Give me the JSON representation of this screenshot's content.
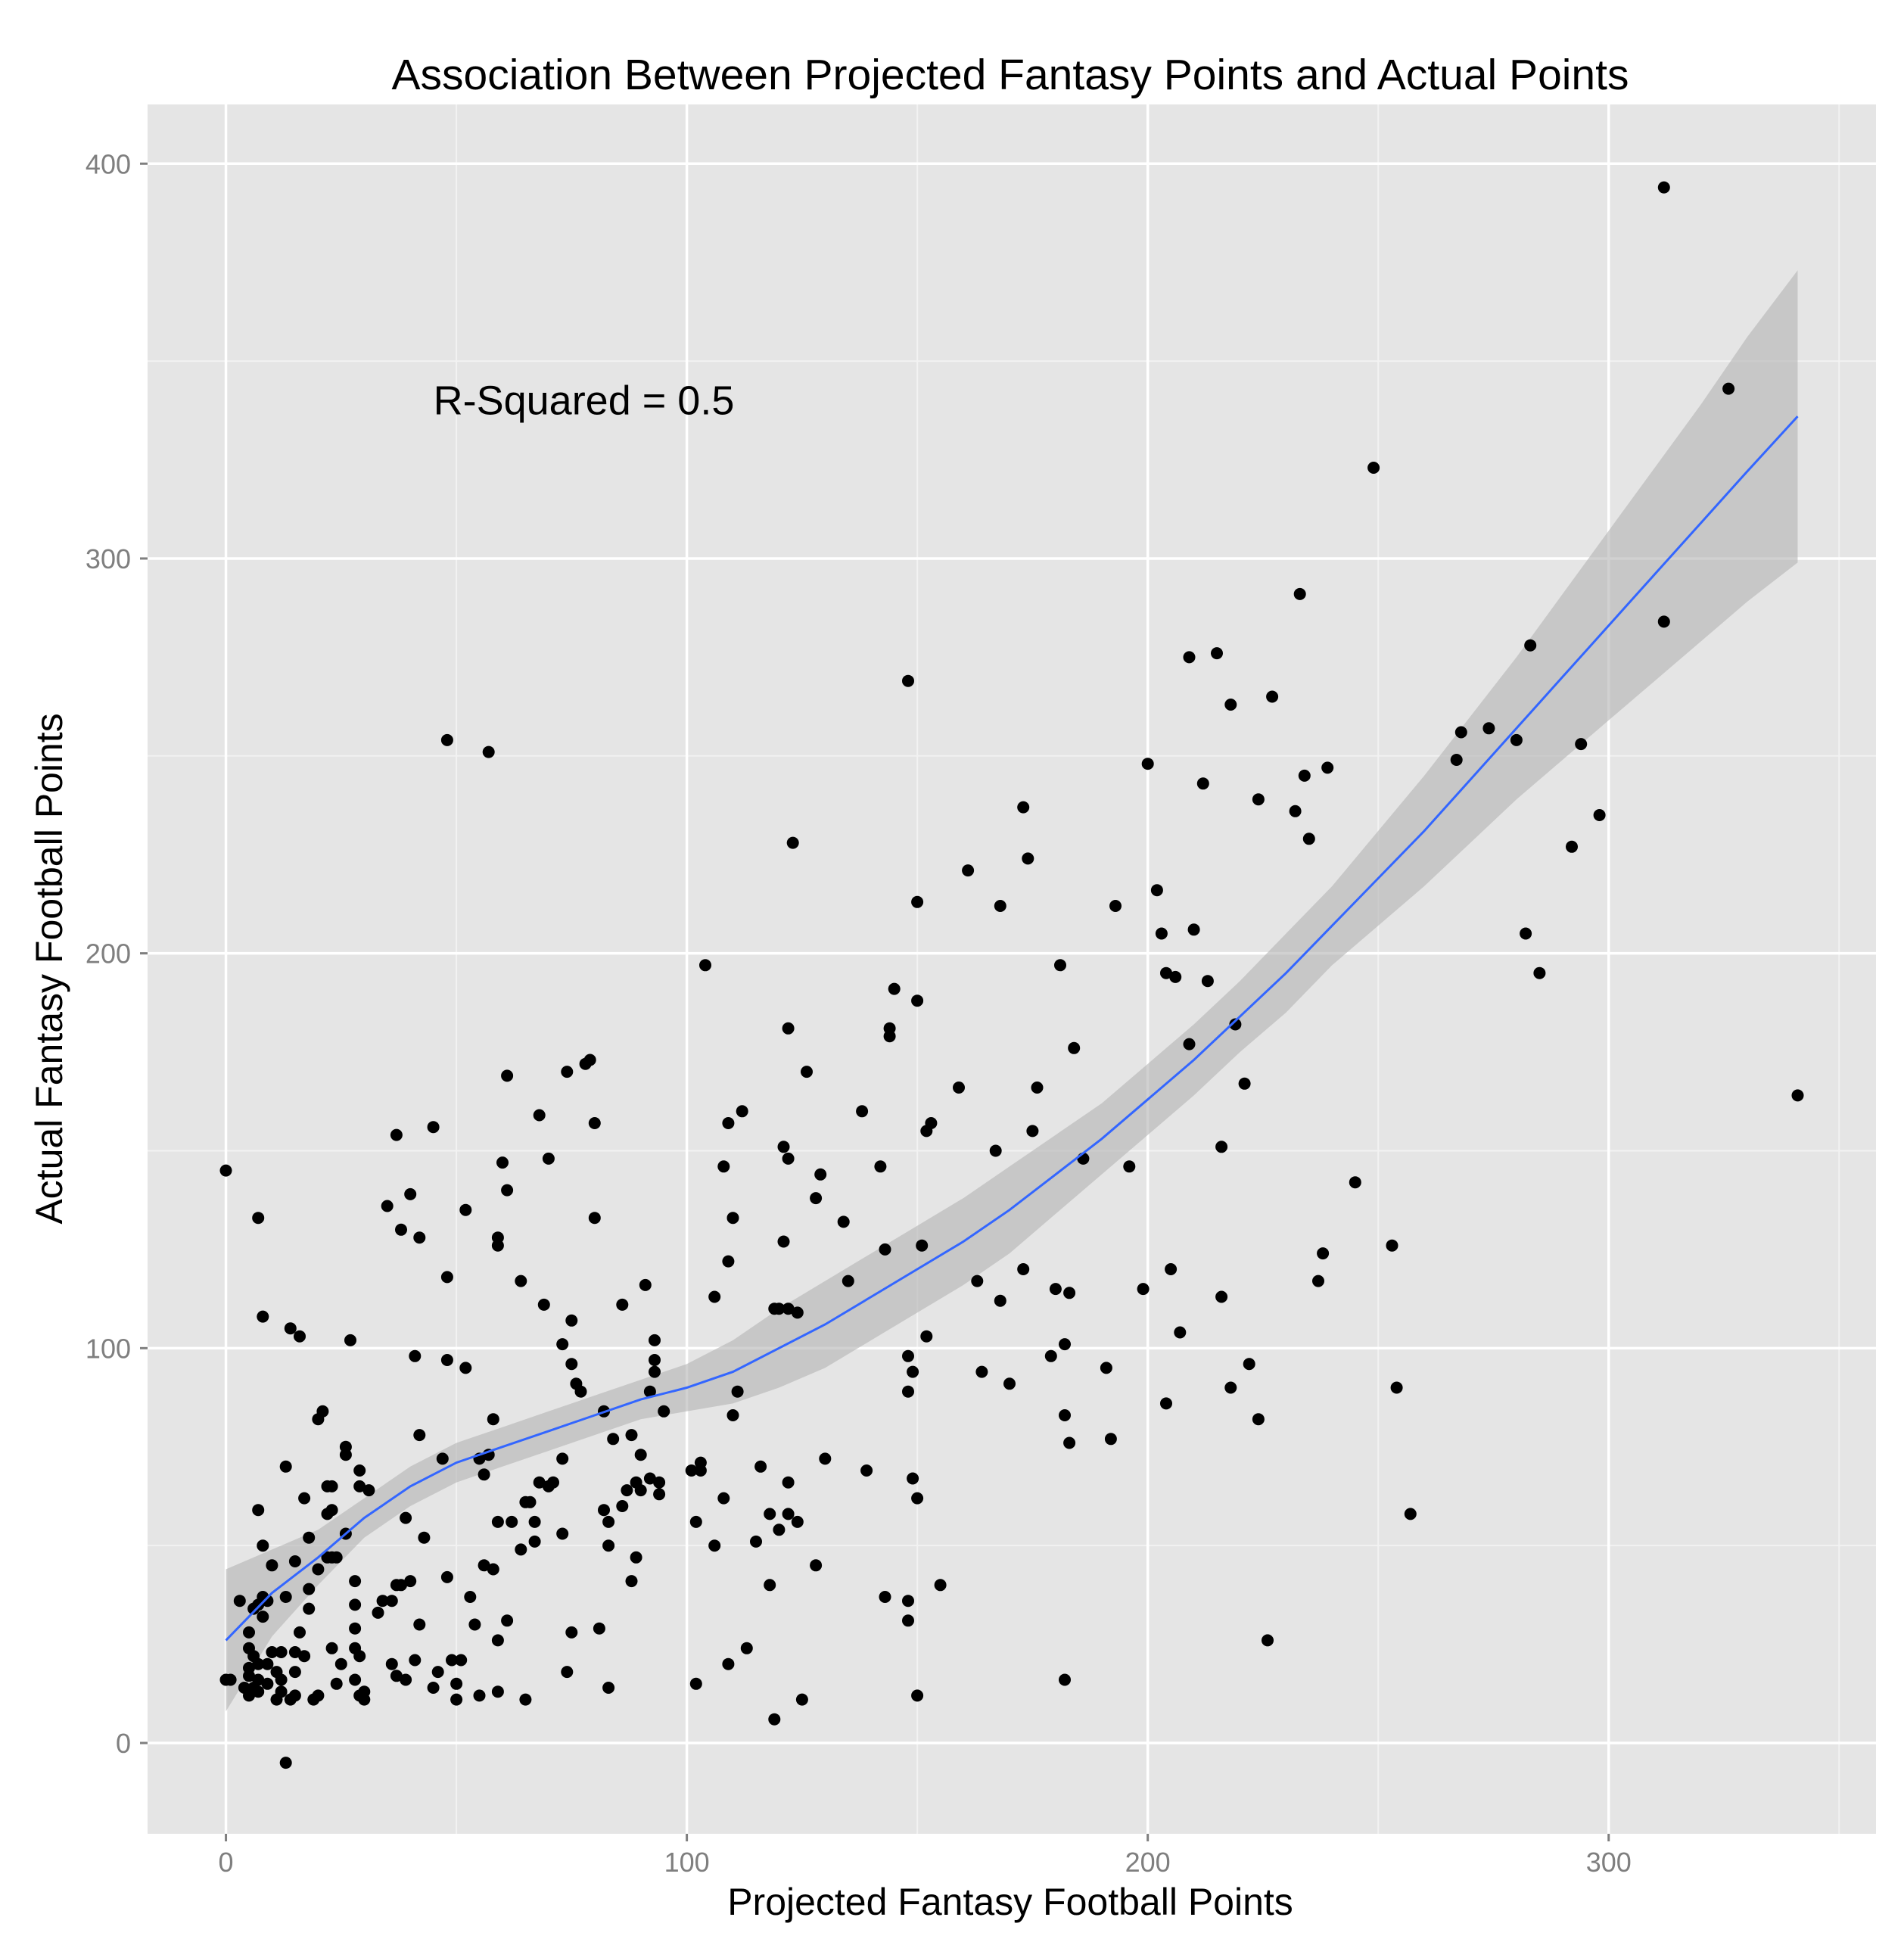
{
  "chart_data": {
    "type": "scatter",
    "title": "Association Between Projected Fantasy Points and Actual Points",
    "xlabel": "Projected Fantasy Football Points",
    "ylabel": "Actual Fantasy Football Points",
    "xlim": [
      -17,
      358
    ],
    "ylim": [
      -23,
      415
    ],
    "x_ticks": [
      0,
      100,
      200,
      300
    ],
    "y_ticks": [
      0,
      100,
      200,
      300,
      400
    ],
    "x_tick_labels": [
      "0",
      "100",
      "200",
      "300"
    ],
    "y_tick_labels": [
      "0",
      "100",
      "200",
      "300",
      "400"
    ],
    "grid": true,
    "legend": "none",
    "annotation": {
      "text": "R-Squared = 0.5",
      "x": 45,
      "y": 340
    },
    "colors": {
      "panel": "#e5e5e5",
      "grid_major": "#ffffff",
      "grid_minor": "#f2f2f2",
      "points": "#000000",
      "smooth_line": "#3366ff",
      "ribbon": "#b3b3b3"
    },
    "points": [
      [
        0,
        16
      ],
      [
        0,
        145
      ],
      [
        1,
        16
      ],
      [
        3,
        36
      ],
      [
        4,
        14
      ],
      [
        5,
        12
      ],
      [
        5,
        17
      ],
      [
        5,
        19
      ],
      [
        5,
        24
      ],
      [
        5,
        28
      ],
      [
        6,
        14
      ],
      [
        6,
        22
      ],
      [
        6,
        34
      ],
      [
        7,
        13
      ],
      [
        7,
        16
      ],
      [
        7,
        20
      ],
      [
        7,
        35
      ],
      [
        7,
        59
      ],
      [
        7,
        133
      ],
      [
        8,
        32
      ],
      [
        8,
        37
      ],
      [
        8,
        50
      ],
      [
        8,
        108
      ],
      [
        9,
        15
      ],
      [
        9,
        20
      ],
      [
        9,
        36
      ],
      [
        10,
        23
      ],
      [
        10,
        45
      ],
      [
        11,
        18
      ],
      [
        11,
        11
      ],
      [
        12,
        13
      ],
      [
        12,
        16
      ],
      [
        12,
        23
      ],
      [
        13,
        -5
      ],
      [
        13,
        37
      ],
      [
        13,
        70
      ],
      [
        14,
        11
      ],
      [
        14,
        105
      ],
      [
        15,
        12
      ],
      [
        15,
        18
      ],
      [
        15,
        23
      ],
      [
        15,
        46
      ],
      [
        16,
        28
      ],
      [
        16,
        103
      ],
      [
        17,
        22
      ],
      [
        17,
        62
      ],
      [
        18,
        34
      ],
      [
        18,
        39
      ],
      [
        18,
        52
      ],
      [
        19,
        11
      ],
      [
        20,
        12
      ],
      [
        20,
        44
      ],
      [
        20,
        82
      ],
      [
        21,
        84
      ],
      [
        22,
        47
      ],
      [
        22,
        58
      ],
      [
        22,
        65
      ],
      [
        23,
        24
      ],
      [
        23,
        47
      ],
      [
        23,
        59
      ],
      [
        23,
        65
      ],
      [
        24,
        15
      ],
      [
        24,
        47
      ],
      [
        25,
        20
      ],
      [
        26,
        53
      ],
      [
        26,
        73
      ],
      [
        26,
        75
      ],
      [
        27,
        102
      ],
      [
        28,
        24
      ],
      [
        28,
        29
      ],
      [
        28,
        41
      ],
      [
        28,
        16
      ],
      [
        28,
        35
      ],
      [
        29,
        12
      ],
      [
        29,
        22
      ],
      [
        29,
        65
      ],
      [
        29,
        69
      ],
      [
        30,
        11
      ],
      [
        30,
        13
      ],
      [
        31,
        64
      ],
      [
        33,
        33
      ],
      [
        34,
        36
      ],
      [
        35,
        136
      ],
      [
        36,
        20
      ],
      [
        36,
        36
      ],
      [
        37,
        17
      ],
      [
        37,
        40
      ],
      [
        37,
        154
      ],
      [
        38,
        40
      ],
      [
        38,
        130
      ],
      [
        39,
        16
      ],
      [
        39,
        57
      ],
      [
        40,
        41
      ],
      [
        40,
        139
      ],
      [
        41,
        21
      ],
      [
        41,
        98
      ],
      [
        42,
        30
      ],
      [
        42,
        78
      ],
      [
        42,
        128
      ],
      [
        43,
        52
      ],
      [
        45,
        14
      ],
      [
        45,
        156
      ],
      [
        46,
        18
      ],
      [
        47,
        72
      ],
      [
        48,
        42
      ],
      [
        48,
        97
      ],
      [
        48,
        118
      ],
      [
        48,
        254
      ],
      [
        49,
        21
      ],
      [
        50,
        11
      ],
      [
        50,
        15
      ],
      [
        51,
        21
      ],
      [
        52,
        95
      ],
      [
        52,
        135
      ],
      [
        53,
        37
      ],
      [
        54,
        30
      ],
      [
        55,
        12
      ],
      [
        55,
        72
      ],
      [
        56,
        45
      ],
      [
        56,
        68
      ],
      [
        57,
        73
      ],
      [
        57,
        251
      ],
      [
        58,
        44
      ],
      [
        58,
        82
      ],
      [
        59,
        13
      ],
      [
        59,
        26
      ],
      [
        59,
        56
      ],
      [
        59,
        126
      ],
      [
        59,
        128
      ],
      [
        60,
        147
      ],
      [
        61,
        31
      ],
      [
        61,
        140
      ],
      [
        61,
        169
      ],
      [
        62,
        56
      ],
      [
        64,
        117
      ],
      [
        64,
        49
      ],
      [
        65,
        11
      ],
      [
        65,
        61
      ],
      [
        66,
        61
      ],
      [
        67,
        51
      ],
      [
        67,
        56
      ],
      [
        68,
        66
      ],
      [
        68,
        159
      ],
      [
        69,
        111
      ],
      [
        70,
        65
      ],
      [
        70,
        148
      ],
      [
        71,
        66
      ],
      [
        73,
        53
      ],
      [
        73,
        72
      ],
      [
        73,
        101
      ],
      [
        74,
        18
      ],
      [
        74,
        170
      ],
      [
        75,
        28
      ],
      [
        75,
        96
      ],
      [
        75,
        107
      ],
      [
        76,
        91
      ],
      [
        77,
        89
      ],
      [
        78,
        172
      ],
      [
        79,
        173
      ],
      [
        80,
        157
      ],
      [
        80,
        133
      ],
      [
        81,
        29
      ],
      [
        82,
        59
      ],
      [
        82,
        84
      ],
      [
        83,
        14
      ],
      [
        83,
        50
      ],
      [
        83,
        56
      ],
      [
        84,
        77
      ],
      [
        86,
        111
      ],
      [
        86,
        60
      ],
      [
        87,
        64
      ],
      [
        88,
        41
      ],
      [
        88,
        78
      ],
      [
        89,
        47
      ],
      [
        89,
        66
      ],
      [
        90,
        64
      ],
      [
        90,
        73
      ],
      [
        91,
        116
      ],
      [
        92,
        67
      ],
      [
        92,
        89
      ],
      [
        93,
        94
      ],
      [
        93,
        97
      ],
      [
        93,
        102
      ],
      [
        94,
        63
      ],
      [
        94,
        66
      ],
      [
        95,
        84
      ],
      [
        101,
        69
      ],
      [
        102,
        56
      ],
      [
        102,
        15
      ],
      [
        103,
        69
      ],
      [
        103,
        71
      ],
      [
        104,
        197
      ],
      [
        106,
        50
      ],
      [
        106,
        113
      ],
      [
        108,
        62
      ],
      [
        108,
        146
      ],
      [
        109,
        20
      ],
      [
        109,
        122
      ],
      [
        109,
        157
      ],
      [
        110,
        83
      ],
      [
        110,
        133
      ],
      [
        111,
        89
      ],
      [
        112,
        160
      ],
      [
        113,
        24
      ],
      [
        115,
        51
      ],
      [
        116,
        70
      ],
      [
        118,
        58
      ],
      [
        118,
        40
      ],
      [
        119,
        6
      ],
      [
        119,
        110
      ],
      [
        120,
        54
      ],
      [
        120,
        110
      ],
      [
        121,
        127
      ],
      [
        121,
        151
      ],
      [
        122,
        58
      ],
      [
        122,
        66
      ],
      [
        122,
        110
      ],
      [
        122,
        148
      ],
      [
        122,
        181
      ],
      [
        123,
        228
      ],
      [
        124,
        56
      ],
      [
        124,
        109
      ],
      [
        125,
        11
      ],
      [
        126,
        170
      ],
      [
        128,
        45
      ],
      [
        128,
        138
      ],
      [
        129,
        144
      ],
      [
        130,
        72
      ],
      [
        134,
        132
      ],
      [
        135,
        117
      ],
      [
        138,
        160
      ],
      [
        139,
        69
      ],
      [
        142,
        146
      ],
      [
        143,
        125
      ],
      [
        143,
        37
      ],
      [
        144,
        181
      ],
      [
        144,
        179
      ],
      [
        145,
        191
      ],
      [
        148,
        98
      ],
      [
        148,
        36
      ],
      [
        148,
        31
      ],
      [
        148,
        89
      ],
      [
        148,
        269
      ],
      [
        149,
        67
      ],
      [
        149,
        94
      ],
      [
        150,
        12
      ],
      [
        150,
        62
      ],
      [
        150,
        213
      ],
      [
        150,
        188
      ],
      [
        151,
        126
      ],
      [
        152,
        103
      ],
      [
        152,
        155
      ],
      [
        153,
        157
      ],
      [
        155,
        40
      ],
      [
        159,
        166
      ],
      [
        161,
        221
      ],
      [
        163,
        117
      ],
      [
        164,
        94
      ],
      [
        167,
        150
      ],
      [
        168,
        112
      ],
      [
        168,
        212
      ],
      [
        170,
        91
      ],
      [
        173,
        120
      ],
      [
        173,
        237
      ],
      [
        174,
        224
      ],
      [
        175,
        155
      ],
      [
        176,
        166
      ],
      [
        179,
        98
      ],
      [
        180,
        115
      ],
      [
        181,
        197
      ],
      [
        182,
        83
      ],
      [
        182,
        101
      ],
      [
        182,
        16
      ],
      [
        183,
        76
      ],
      [
        183,
        114
      ],
      [
        184,
        176
      ],
      [
        186,
        148
      ],
      [
        191,
        95
      ],
      [
        192,
        77
      ],
      [
        193,
        212
      ],
      [
        196,
        146
      ],
      [
        199,
        115
      ],
      [
        200,
        248
      ],
      [
        202,
        216
      ],
      [
        203,
        205
      ],
      [
        204,
        195
      ],
      [
        204,
        86
      ],
      [
        205,
        120
      ],
      [
        206,
        194
      ],
      [
        207,
        104
      ],
      [
        209,
        177
      ],
      [
        209,
        275
      ],
      [
        210,
        206
      ],
      [
        212,
        243
      ],
      [
        213,
        193
      ],
      [
        215,
        276
      ],
      [
        216,
        113
      ],
      [
        216,
        151
      ],
      [
        218,
        90
      ],
      [
        218,
        263
      ],
      [
        219,
        182
      ],
      [
        221,
        167
      ],
      [
        222,
        96
      ],
      [
        224,
        82
      ],
      [
        224,
        239
      ],
      [
        226,
        26
      ],
      [
        227,
        265
      ],
      [
        232,
        236
      ],
      [
        233,
        291
      ],
      [
        234,
        245
      ],
      [
        235,
        229
      ],
      [
        237,
        117
      ],
      [
        238,
        124
      ],
      [
        239,
        247
      ],
      [
        245,
        142
      ],
      [
        249,
        323
      ],
      [
        253,
        126
      ],
      [
        254,
        90
      ],
      [
        257,
        58
      ],
      [
        267,
        249
      ],
      [
        268,
        256
      ],
      [
        274,
        257
      ],
      [
        280,
        254
      ],
      [
        282,
        205
      ],
      [
        283,
        278
      ],
      [
        285,
        195
      ],
      [
        292,
        227
      ],
      [
        294,
        253
      ],
      [
        298,
        235
      ],
      [
        312,
        284
      ],
      [
        312,
        394
      ],
      [
        326,
        343
      ],
      [
        341,
        164
      ]
    ],
    "smooth_fit": [
      [
        0,
        26
      ],
      [
        10,
        38
      ],
      [
        20,
        47
      ],
      [
        30,
        57
      ],
      [
        40,
        65
      ],
      [
        50,
        71
      ],
      [
        60,
        75
      ],
      [
        70,
        79
      ],
      [
        80,
        83
      ],
      [
        90,
        87
      ],
      [
        100,
        90
      ],
      [
        110,
        94
      ],
      [
        120,
        100
      ],
      [
        130,
        106
      ],
      [
        140,
        113
      ],
      [
        150,
        120
      ],
      [
        160,
        127
      ],
      [
        170,
        135
      ],
      [
        180,
        144
      ],
      [
        190,
        153
      ],
      [
        200,
        163
      ],
      [
        210,
        173
      ],
      [
        220,
        184
      ],
      [
        230,
        195
      ],
      [
        240,
        207
      ],
      [
        250,
        219
      ],
      [
        260,
        231
      ],
      [
        270,
        244
      ],
      [
        280,
        257
      ],
      [
        290,
        270
      ],
      [
        300,
        283
      ],
      [
        310,
        296
      ],
      [
        320,
        309
      ],
      [
        330,
        322
      ],
      [
        341,
        336
      ]
    ],
    "ribbon_upper": [
      [
        0,
        44
      ],
      [
        10,
        49
      ],
      [
        20,
        54
      ],
      [
        30,
        62
      ],
      [
        40,
        70
      ],
      [
        50,
        76
      ],
      [
        60,
        80
      ],
      [
        70,
        84
      ],
      [
        80,
        88
      ],
      [
        90,
        92
      ],
      [
        100,
        96
      ],
      [
        110,
        102
      ],
      [
        120,
        110
      ],
      [
        130,
        117
      ],
      [
        140,
        124
      ],
      [
        150,
        131
      ],
      [
        160,
        138
      ],
      [
        170,
        146
      ],
      [
        180,
        154
      ],
      [
        190,
        162
      ],
      [
        200,
        172
      ],
      [
        210,
        182
      ],
      [
        220,
        193
      ],
      [
        230,
        205
      ],
      [
        240,
        217
      ],
      [
        250,
        231
      ],
      [
        260,
        245
      ],
      [
        270,
        260
      ],
      [
        280,
        275
      ],
      [
        290,
        291
      ],
      [
        300,
        307
      ],
      [
        310,
        323
      ],
      [
        320,
        339
      ],
      [
        330,
        356
      ],
      [
        341,
        373
      ]
    ],
    "ribbon_lower": [
      [
        0,
        8
      ],
      [
        10,
        27
      ],
      [
        20,
        40
      ],
      [
        30,
        52
      ],
      [
        40,
        60
      ],
      [
        50,
        66
      ],
      [
        60,
        70
      ],
      [
        70,
        74
      ],
      [
        80,
        78
      ],
      [
        90,
        82
      ],
      [
        100,
        84
      ],
      [
        110,
        86
      ],
      [
        120,
        90
      ],
      [
        130,
        95
      ],
      [
        140,
        102
      ],
      [
        150,
        109
      ],
      [
        160,
        116
      ],
      [
        170,
        124
      ],
      [
        180,
        134
      ],
      [
        190,
        144
      ],
      [
        200,
        154
      ],
      [
        210,
        164
      ],
      [
        220,
        175
      ],
      [
        230,
        185
      ],
      [
        240,
        197
      ],
      [
        250,
        207
      ],
      [
        260,
        217
      ],
      [
        270,
        228
      ],
      [
        280,
        239
      ],
      [
        290,
        249
      ],
      [
        300,
        259
      ],
      [
        310,
        269
      ],
      [
        320,
        279
      ],
      [
        330,
        289
      ],
      [
        341,
        299
      ]
    ]
  }
}
